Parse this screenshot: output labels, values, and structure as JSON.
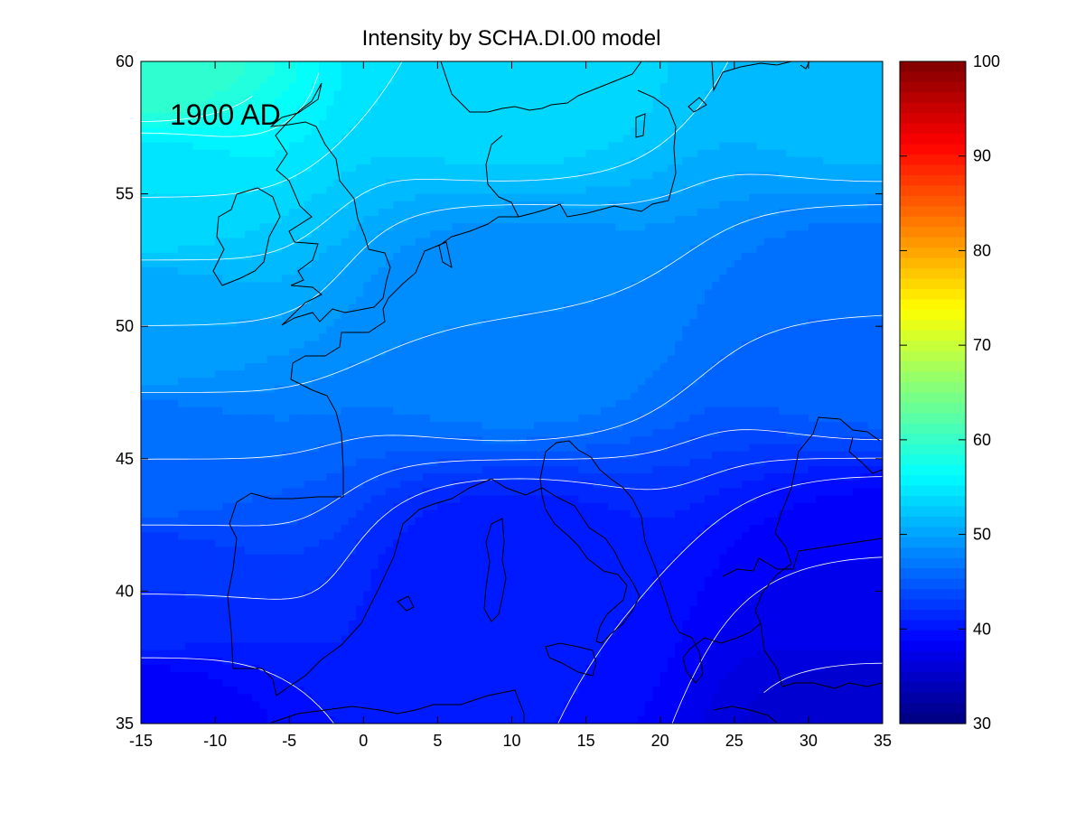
{
  "chart_data": {
    "type": "heatmap",
    "title": "Intensity by SCHA.DI.00 model",
    "annotation": "1900 AD",
    "xlabel": "",
    "ylabel": "",
    "xlim": [
      -15,
      35
    ],
    "ylim": [
      35,
      60
    ],
    "x_ticks": [
      -15,
      -10,
      -5,
      0,
      5,
      10,
      15,
      20,
      25,
      30,
      35
    ],
    "y_ticks": [
      35,
      40,
      45,
      50,
      55,
      60
    ],
    "colorbar": {
      "range": [
        30,
        100
      ],
      "ticks": [
        30,
        40,
        50,
        60,
        70,
        80,
        90,
        100
      ],
      "colormap": "jet"
    },
    "field": {
      "description_values": "intensity estimated from color at sample points",
      "samples": [
        {
          "x": -15,
          "y": 60,
          "value": 60
        },
        {
          "x": -15,
          "y": 55,
          "value": 54
        },
        {
          "x": -15,
          "y": 50,
          "value": 50
        },
        {
          "x": -15,
          "y": 45,
          "value": 46
        },
        {
          "x": -15,
          "y": 40,
          "value": 42
        },
        {
          "x": -15,
          "y": 35,
          "value": 38
        },
        {
          "x": 10,
          "y": 60,
          "value": 54
        },
        {
          "x": 10,
          "y": 50,
          "value": 48
        },
        {
          "x": 10,
          "y": 40,
          "value": 40
        },
        {
          "x": 35,
          "y": 60,
          "value": 52
        },
        {
          "x": 35,
          "y": 50,
          "value": 46
        },
        {
          "x": 35,
          "y": 40,
          "value": 38
        },
        {
          "x": 35,
          "y": 35,
          "value": 35
        }
      ],
      "contour_interval": 1
    },
    "grid": false,
    "legend": "colorbar right"
  }
}
